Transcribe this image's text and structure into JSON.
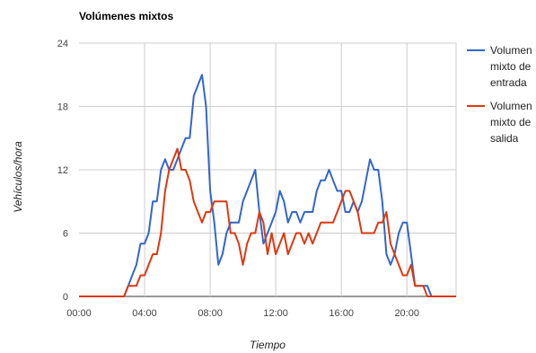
{
  "chart_data": {
    "type": "line",
    "title": "Volúmenes mixtos",
    "xlabel": "Tiempo",
    "ylabel": "Vehículos/hora",
    "xlim": [
      0,
      23
    ],
    "ylim": [
      0,
      24
    ],
    "x_ticks": [
      {
        "value": 0,
        "label": "00:00"
      },
      {
        "value": 4,
        "label": "04:00"
      },
      {
        "value": 8,
        "label": "08:00"
      },
      {
        "value": 12,
        "label": "12:00"
      },
      {
        "value": 16,
        "label": "16:00"
      },
      {
        "value": 20,
        "label": "20:00"
      }
    ],
    "y_ticks": [
      0,
      6,
      12,
      18,
      24
    ],
    "grid": true,
    "legend_position": "right",
    "series": [
      {
        "name": "Volumen mixto de entrada",
        "color": "#3366cc",
        "points": [
          [
            0,
            0
          ],
          [
            2.75,
            0
          ],
          [
            3,
            1
          ],
          [
            3.25,
            2
          ],
          [
            3.5,
            3
          ],
          [
            3.75,
            5
          ],
          [
            4,
            5
          ],
          [
            4.25,
            6
          ],
          [
            4.5,
            9
          ],
          [
            4.75,
            9
          ],
          [
            5,
            12
          ],
          [
            5.25,
            13
          ],
          [
            5.5,
            12
          ],
          [
            5.75,
            12
          ],
          [
            6,
            13
          ],
          [
            6.25,
            14
          ],
          [
            6.5,
            15
          ],
          [
            6.75,
            15
          ],
          [
            7,
            19
          ],
          [
            7.25,
            20
          ],
          [
            7.5,
            21
          ],
          [
            7.75,
            18
          ],
          [
            8,
            10
          ],
          [
            8.25,
            7
          ],
          [
            8.5,
            3
          ],
          [
            8.75,
            4
          ],
          [
            9,
            6
          ],
          [
            9.25,
            7
          ],
          [
            9.5,
            7
          ],
          [
            9.75,
            7
          ],
          [
            10,
            9
          ],
          [
            10.25,
            10
          ],
          [
            10.5,
            11
          ],
          [
            10.75,
            12
          ],
          [
            11,
            8
          ],
          [
            11.25,
            5
          ],
          [
            11.5,
            6
          ],
          [
            11.75,
            7
          ],
          [
            12,
            8
          ],
          [
            12.25,
            10
          ],
          [
            12.5,
            9
          ],
          [
            12.75,
            7
          ],
          [
            13,
            8
          ],
          [
            13.25,
            8
          ],
          [
            13.5,
            7
          ],
          [
            13.75,
            8
          ],
          [
            14,
            8
          ],
          [
            14.25,
            8
          ],
          [
            14.5,
            10
          ],
          [
            14.75,
            11
          ],
          [
            15,
            11
          ],
          [
            15.25,
            12
          ],
          [
            15.5,
            11
          ],
          [
            15.75,
            10
          ],
          [
            16,
            10
          ],
          [
            16.25,
            8
          ],
          [
            16.5,
            8
          ],
          [
            16.75,
            9
          ],
          [
            17,
            8
          ],
          [
            17.25,
            9
          ],
          [
            17.5,
            11
          ],
          [
            17.75,
            13
          ],
          [
            18,
            12
          ],
          [
            18.25,
            12
          ],
          [
            18.5,
            9
          ],
          [
            18.75,
            4
          ],
          [
            19,
            3
          ],
          [
            19.25,
            4
          ],
          [
            19.5,
            6
          ],
          [
            19.75,
            7
          ],
          [
            20,
            7
          ],
          [
            20.25,
            4
          ],
          [
            20.5,
            1
          ],
          [
            20.75,
            1
          ],
          [
            21,
            1
          ],
          [
            21.25,
            1
          ],
          [
            21.5,
            0
          ],
          [
            23,
            0
          ]
        ]
      },
      {
        "name": "Volumen mixto de salida",
        "color": "#dc3912",
        "points": [
          [
            0,
            0
          ],
          [
            2.75,
            0
          ],
          [
            3,
            1
          ],
          [
            3.25,
            1
          ],
          [
            3.5,
            1
          ],
          [
            3.75,
            2
          ],
          [
            4,
            2
          ],
          [
            4.25,
            3
          ],
          [
            4.5,
            4
          ],
          [
            4.75,
            4
          ],
          [
            5,
            6
          ],
          [
            5.25,
            10
          ],
          [
            5.5,
            12
          ],
          [
            5.75,
            13
          ],
          [
            6,
            14
          ],
          [
            6.25,
            12
          ],
          [
            6.5,
            12
          ],
          [
            6.75,
            11
          ],
          [
            7,
            9
          ],
          [
            7.25,
            8
          ],
          [
            7.5,
            7
          ],
          [
            7.75,
            8
          ],
          [
            8,
            8
          ],
          [
            8.25,
            9
          ],
          [
            8.5,
            9
          ],
          [
            8.75,
            9
          ],
          [
            9,
            9
          ],
          [
            9.25,
            6
          ],
          [
            9.5,
            6
          ],
          [
            9.75,
            5
          ],
          [
            10,
            3
          ],
          [
            10.25,
            5
          ],
          [
            10.5,
            6
          ],
          [
            10.75,
            6
          ],
          [
            11,
            8
          ],
          [
            11.25,
            7
          ],
          [
            11.5,
            4
          ],
          [
            11.75,
            6
          ],
          [
            12,
            4
          ],
          [
            12.25,
            5
          ],
          [
            12.5,
            6
          ],
          [
            12.75,
            4
          ],
          [
            13,
            5
          ],
          [
            13.25,
            6
          ],
          [
            13.5,
            6
          ],
          [
            13.75,
            5
          ],
          [
            14,
            6
          ],
          [
            14.25,
            5
          ],
          [
            14.5,
            6
          ],
          [
            14.75,
            7
          ],
          [
            15,
            7
          ],
          [
            15.25,
            7
          ],
          [
            15.5,
            7
          ],
          [
            15.75,
            8
          ],
          [
            16,
            9
          ],
          [
            16.25,
            10
          ],
          [
            16.5,
            10
          ],
          [
            16.75,
            9
          ],
          [
            17,
            8
          ],
          [
            17.25,
            6
          ],
          [
            17.5,
            6
          ],
          [
            17.75,
            6
          ],
          [
            18,
            6
          ],
          [
            18.25,
            7
          ],
          [
            18.5,
            7
          ],
          [
            18.75,
            8
          ],
          [
            19,
            5
          ],
          [
            19.25,
            4
          ],
          [
            19.5,
            3
          ],
          [
            19.75,
            2
          ],
          [
            20,
            2
          ],
          [
            20.25,
            3
          ],
          [
            20.5,
            1
          ],
          [
            20.75,
            1
          ],
          [
            21,
            1
          ],
          [
            21.25,
            0
          ],
          [
            23,
            0
          ]
        ]
      }
    ]
  }
}
